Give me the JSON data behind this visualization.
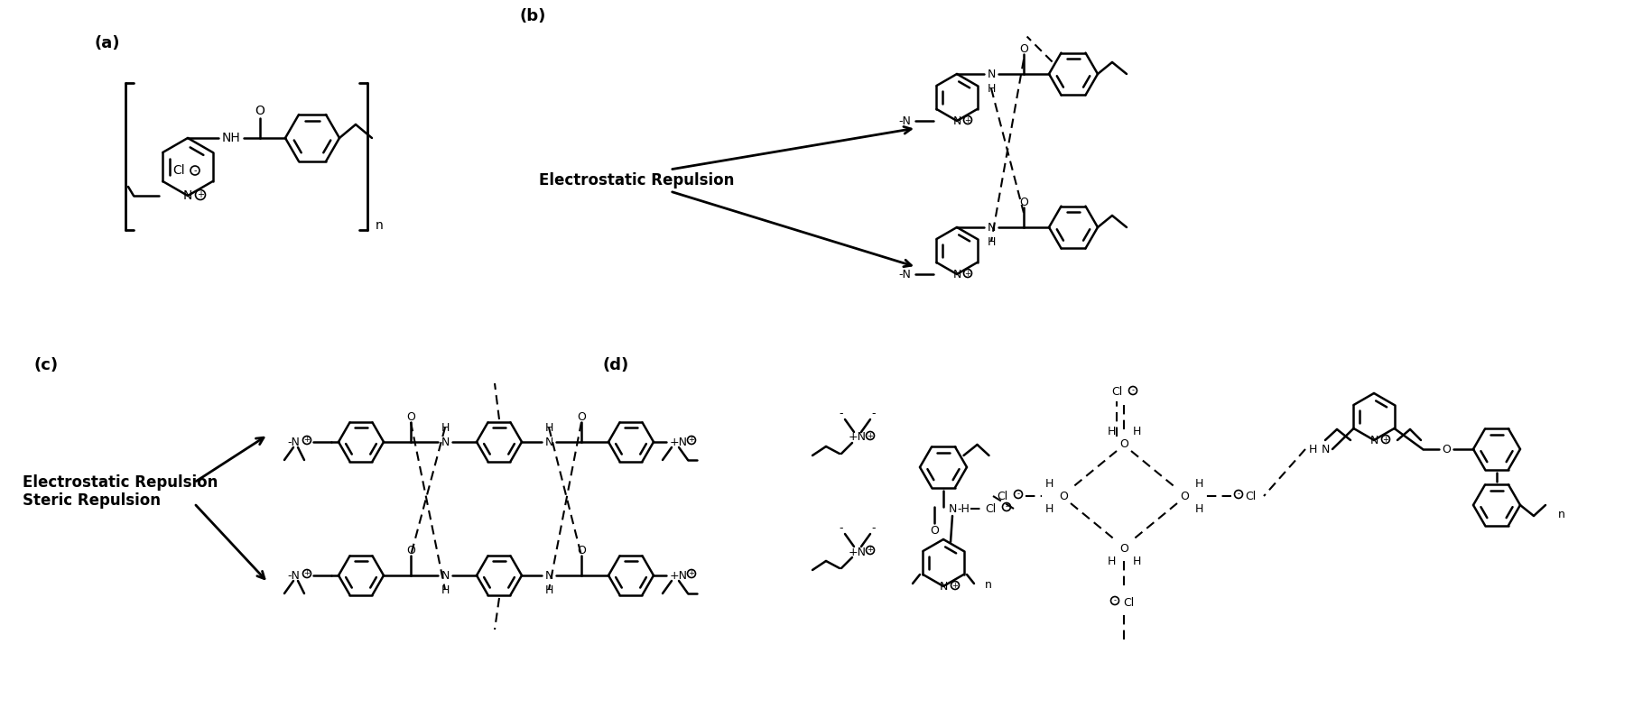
{
  "bg_color": "#ffffff",
  "fig_width": 18.31,
  "fig_height": 7.85,
  "label_a": "(a)",
  "label_b": "(b)",
  "label_c": "(c)",
  "label_d": "(d)",
  "electrostatic_repulsion": "Electrostatic Repulsion",
  "electrostatic_steric": "Electrostatic Repulsion\nSteric Repulsion"
}
